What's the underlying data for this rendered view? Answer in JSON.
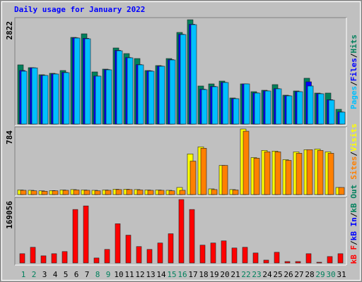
{
  "chart_data": {
    "type": "bar",
    "title": "Daily usage for January 2022",
    "categories": [
      "1",
      "2",
      "3",
      "4",
      "5",
      "6",
      "7",
      "8",
      "9",
      "10",
      "11",
      "12",
      "13",
      "14",
      "15",
      "16",
      "17",
      "18",
      "19",
      "20",
      "21",
      "22",
      "23",
      "24",
      "25",
      "26",
      "27",
      "28",
      "29",
      "30",
      "31"
    ],
    "weekend_color": "#00805C",
    "weekend_days": [
      0,
      1,
      7,
      8,
      14,
      15,
      21,
      22,
      28,
      29
    ],
    "legend_separator": "/",
    "panels": [
      {
        "ylim": [
          0,
          2822
        ],
        "yticks": [
          2822
        ],
        "series": [
          {
            "name": "Pages",
            "color": "#00C0FF",
            "values": [
              1430,
              1520,
              1316,
              1354,
              1392,
              2327,
              2307,
              1297,
              1468,
              1983,
              1793,
              1602,
              1430,
              1564,
              1735,
              2422,
              2689,
              934,
              1011,
              1125,
              687,
              1087,
              839,
              896,
              954,
              763,
              877,
              1030,
              820,
              648,
              324
            ]
          },
          {
            "name": "Files",
            "color": "#0000FF",
            "values": [
              1450,
              1525,
              1320,
              1360,
              1400,
              2335,
              2320,
              1300,
              1475,
              1995,
              1800,
              1610,
              1440,
              1570,
              1745,
              2430,
              2700,
              945,
              1020,
              1130,
              690,
              1087,
              845,
              900,
              960,
              770,
              880,
              1144,
              825,
              660,
              330
            ]
          },
          {
            "name": "Hits",
            "color": "#00805C",
            "values": [
              1602,
              1526,
              1335,
              1373,
              1449,
              2345,
              2441,
              1411,
              1487,
              2059,
              1907,
              1773,
              1449,
              1583,
              1773,
              2479,
              2822,
              1030,
              1087,
              1163,
              706,
              1087,
              877,
              915,
              1068,
              782,
              896,
              1240,
              839,
              839,
              400
            ]
          }
        ]
      },
      {
        "ylim": [
          0,
          784
        ],
        "yticks": [
          784
        ],
        "series": [
          {
            "name": "Sites",
            "color": "#FF8000",
            "values": [
              51,
              45,
              40,
              45,
              51,
              55,
              51,
              45,
              51,
              60,
              60,
              55,
              51,
              51,
              45,
              51,
              400,
              554,
              60,
              349,
              55,
              758,
              435,
              511,
              511,
              409,
              494,
              537,
              528,
              494,
              85
            ]
          },
          {
            "name": "Visits",
            "color": "#FFFF00",
            "values": [
              55,
              51,
              45,
              48,
              55,
              60,
              55,
              51,
              55,
              64,
              64,
              60,
              55,
              55,
              51,
              85,
              486,
              571,
              68,
              349,
              60,
              784,
              443,
              528,
              520,
              418,
              511,
              537,
              545,
              511,
              85
            ]
          }
        ]
      },
      {
        "ylim": [
          0,
          169056
        ],
        "yticks": [
          169056
        ],
        "series": [
          {
            "name": "kB F",
            "color": "#FF0000",
            "values": [
              24700,
              41800,
              19000,
              24700,
              30400,
              142500,
              152000,
              13300,
              36100,
              104500,
              74100,
              43700,
              36100,
              53200,
              77900,
              169056,
              142500,
              47500,
              53200,
              58900,
              39900,
              41800,
              26600,
              7600,
              28500,
              3800,
              3800,
              24700,
              1900,
              17100,
              24700
            ]
          }
        ],
        "legend_extra": [
          {
            "name": "kB In",
            "color": "#0000FF"
          },
          {
            "name": "kB Out",
            "color": "#00805C"
          }
        ]
      }
    ]
  }
}
